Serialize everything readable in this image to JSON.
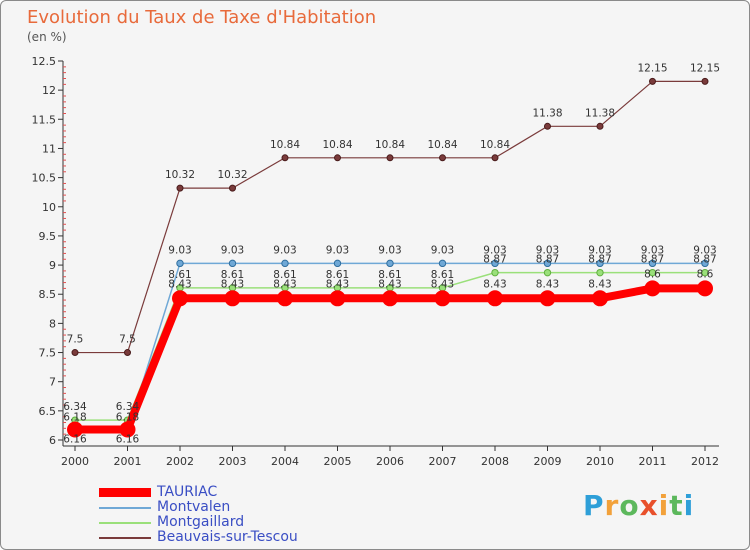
{
  "header": {
    "title": "Evolution du Taux de Taxe d'Habitation",
    "unit": "(en %)"
  },
  "brand": {
    "letters": [
      "P",
      "r",
      "o",
      "x",
      "i",
      "t",
      "i"
    ],
    "colors": [
      "#2e9fd8",
      "#f2a13a",
      "#5cb85c",
      "#e8502b",
      "#f2a13a",
      "#5cb85c",
      "#2e9fd8"
    ]
  },
  "chart_data": {
    "type": "line",
    "title": "Evolution du Taux de Taxe d'Habitation",
    "ylabel": "(en %)",
    "xlabel": "",
    "ylim": [
      6,
      12.5
    ],
    "yticks": [
      6,
      6.5,
      7,
      7.5,
      8,
      8.5,
      9,
      9.5,
      10,
      10.5,
      11,
      11.5,
      12,
      12.5
    ],
    "ytick_labels": [
      "6",
      "6.5",
      "7",
      "7.5",
      "8",
      "8.5",
      "9",
      "9.5",
      "10",
      "10.5",
      "11",
      "11.5",
      "12",
      "12.5"
    ],
    "categories": [
      "2000",
      "2001",
      "2002",
      "2003",
      "2004",
      "2005",
      "2006",
      "2007",
      "2008",
      "2009",
      "2010",
      "2011",
      "2012"
    ],
    "grid": false,
    "legend_position": "bottom-left",
    "series": [
      {
        "name": "TAURIAC",
        "color": "#ff0000",
        "values": [
          6.18,
          6.18,
          8.43,
          8.43,
          8.43,
          8.43,
          8.43,
          8.43,
          8.43,
          8.43,
          8.43,
          8.6,
          8.6
        ],
        "labels": [
          "6.18",
          "6.18",
          "8.43",
          "8.43",
          "8.43",
          "8.43",
          "8.43",
          "8.43",
          "8.43",
          "8.43",
          "8.43",
          "8.6",
          "8.6"
        ]
      },
      {
        "name": "Montvalen",
        "color": "#6fa8d6",
        "values": [
          6.16,
          6.16,
          9.03,
          9.03,
          9.03,
          9.03,
          9.03,
          9.03,
          9.03,
          9.03,
          9.03,
          9.03,
          9.03
        ],
        "labels": [
          "6.16",
          "6.16",
          "9.03",
          "9.03",
          "9.03",
          "9.03",
          "9.03",
          "9.03",
          "9.03",
          "9.03",
          "9.03",
          "9.03",
          "9.03"
        ]
      },
      {
        "name": "Montgaillard",
        "color": "#9ae07a",
        "values": [
          6.34,
          6.34,
          8.61,
          8.61,
          8.61,
          8.61,
          8.61,
          8.61,
          8.87,
          8.87,
          8.87,
          8.87,
          8.87
        ],
        "labels": [
          "6.34",
          "6.34",
          "8.61",
          "8.61",
          "8.61",
          "8.61",
          "8.61",
          "8.61",
          "8.87",
          "8.87",
          "8.87",
          "8.87",
          "8.87"
        ]
      },
      {
        "name": "Beauvais-sur-Tescou",
        "color": "#7a3b3b",
        "values": [
          7.5,
          7.5,
          10.32,
          10.32,
          10.84,
          10.84,
          10.84,
          10.84,
          10.84,
          11.38,
          11.38,
          12.15,
          12.15
        ],
        "labels": [
          "7.5",
          "7.5",
          "10.32",
          "10.32",
          "10.84",
          "10.84",
          "10.84",
          "10.84",
          "10.84",
          "11.38",
          "11.38",
          "12.15",
          "12.15"
        ]
      }
    ]
  }
}
